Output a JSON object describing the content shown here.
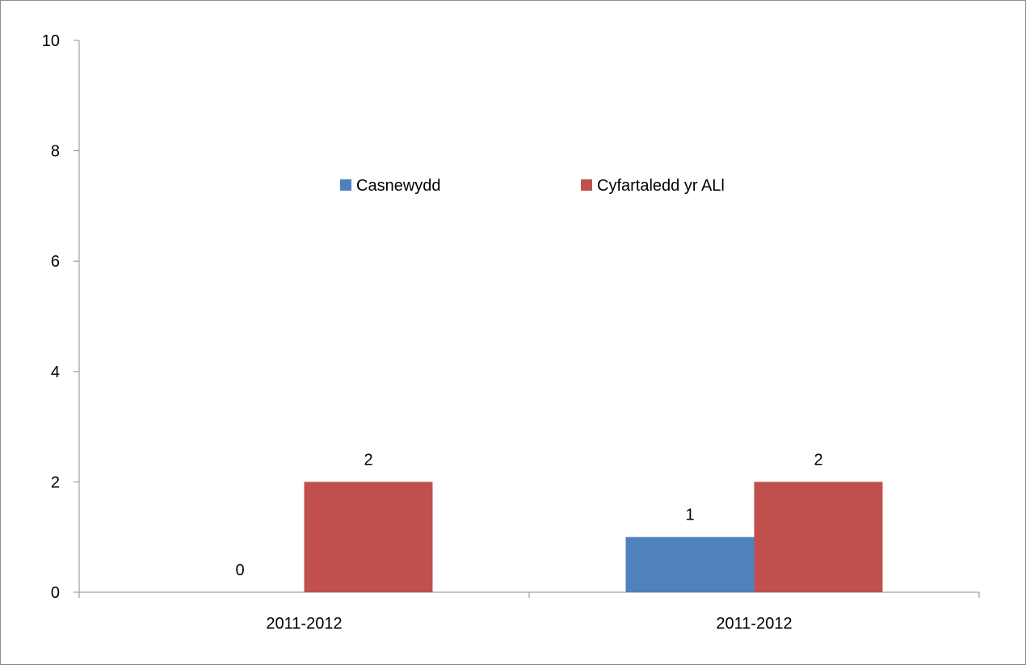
{
  "chart_data": {
    "type": "bar",
    "categories": [
      "2011-2012",
      "2011-2012"
    ],
    "series": [
      {
        "name": "Casnewydd",
        "values": [
          0,
          1
        ],
        "color": "#4F81BD"
      },
      {
        "name": "Cyfartaledd yr ALl",
        "values": [
          2,
          2
        ],
        "color": "#C0504D"
      }
    ],
    "ylim": [
      0,
      10
    ],
    "yticks": [
      0,
      2,
      4,
      6,
      8,
      10
    ],
    "data_labels": true,
    "grid": false,
    "legend_position": "top-center"
  }
}
